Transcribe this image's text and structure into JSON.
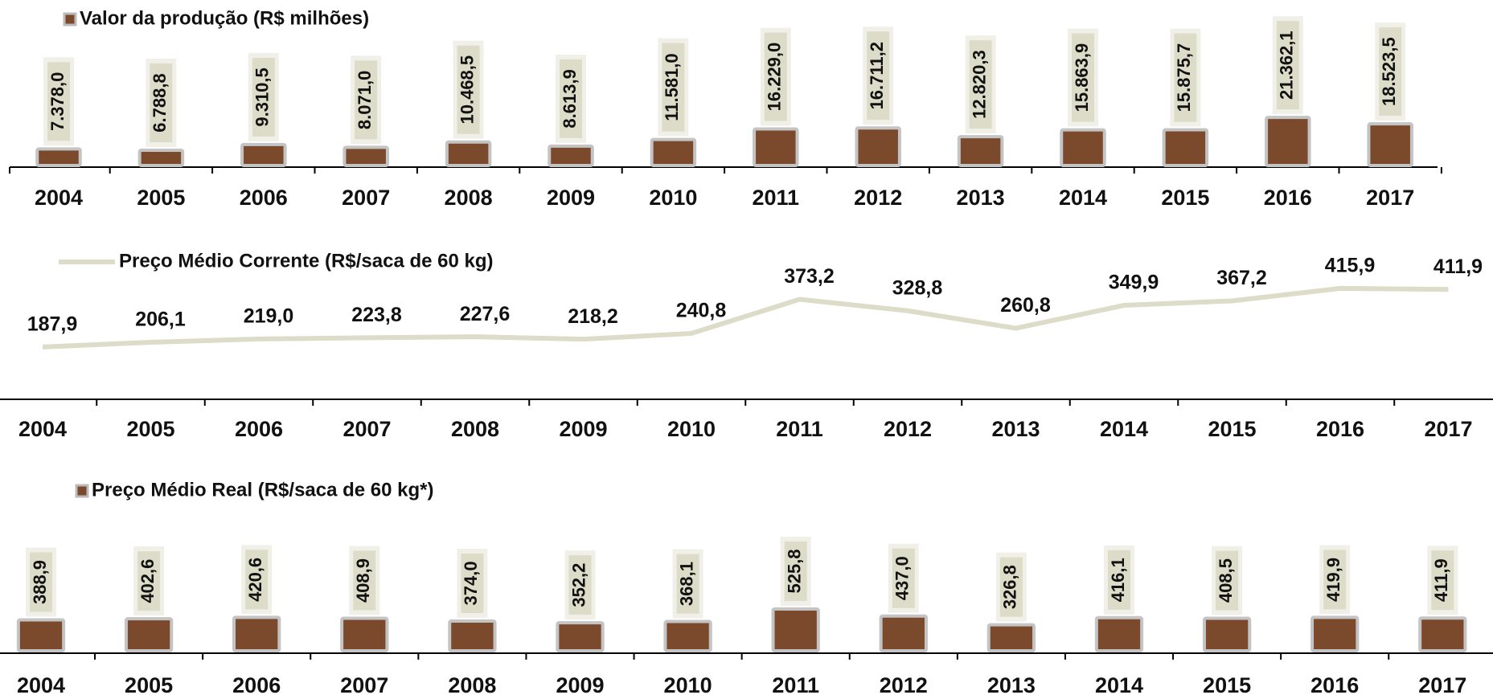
{
  "chart_data": [
    {
      "type": "bar",
      "title": "Valor da produção (R$ milhões)",
      "categories": [
        "2004",
        "2005",
        "2006",
        "2007",
        "2008",
        "2009",
        "2010",
        "2011",
        "2012",
        "2013",
        "2014",
        "2015",
        "2016",
        "2017"
      ],
      "values": [
        7378.0,
        6788.8,
        9310.5,
        8071.0,
        10468.5,
        8613.9,
        11581.0,
        16229.0,
        16711.2,
        12820.3,
        15863.9,
        15875.7,
        21362.1,
        18523.5
      ],
      "value_labels": [
        "7.378,0",
        "6.788,8",
        "9.310,5",
        "8.071,0",
        "10.468,5",
        "8.613,9",
        "11.581,0",
        "16.229,0",
        "16.711,2",
        "12.820,3",
        "15.863,9",
        "15.875,7",
        "21.362,1",
        "18.523,5"
      ],
      "color": "#7b4a2d",
      "label_box_color": "#dcdcc8",
      "ylim": [
        0,
        60000
      ]
    },
    {
      "type": "line",
      "title": "Preço Médio Corrente (R$/saca de 60 kg)",
      "categories": [
        "2004",
        "2005",
        "2006",
        "2007",
        "2008",
        "2009",
        "2010",
        "2011",
        "2012",
        "2013",
        "2014",
        "2015",
        "2016",
        "2017"
      ],
      "values": [
        187.9,
        206.1,
        219.0,
        223.8,
        227.6,
        218.2,
        240.8,
        373.2,
        328.8,
        260.8,
        349.9,
        367.2,
        415.9,
        411.9
      ],
      "value_labels": [
        "187,9",
        "206,1",
        "219,0",
        "223,8",
        "227,6",
        "218,2",
        "240,8",
        "373,2",
        "328,8",
        "260,8",
        "349,9",
        "367,2",
        "415,9",
        "411,9"
      ],
      "color": "#dcdcc8",
      "ylim": [
        0,
        600
      ]
    },
    {
      "type": "bar",
      "title": "Preço Médio Real (R$/saca de 60 kg*)",
      "categories": [
        "2004",
        "2005",
        "2006",
        "2007",
        "2008",
        "2009",
        "2010",
        "2011",
        "2012",
        "2013",
        "2014",
        "2015",
        "2016",
        "2017"
      ],
      "values": [
        388.9,
        402.6,
        420.6,
        408.9,
        374.0,
        352.2,
        368.1,
        525.8,
        437.0,
        326.8,
        416.1,
        408.5,
        419.9,
        411.9
      ],
      "value_labels": [
        "388,9",
        "402,6",
        "420,6",
        "408,9",
        "374,0",
        "352,2",
        "368,1",
        "525,8",
        "437,0",
        "326,8",
        "416,1",
        "408,5",
        "419,9",
        "411,9"
      ],
      "color": "#7b4a2d",
      "label_box_color": "#dcdcc8",
      "ylim": [
        0,
        2000
      ]
    }
  ]
}
